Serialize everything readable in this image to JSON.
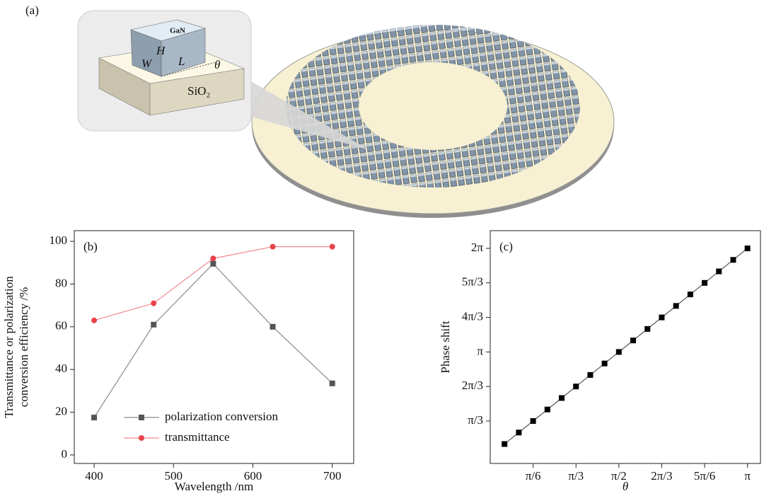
{
  "illustration": {
    "panel_label": "(a)",
    "block_label": "GaN",
    "height_label": "H",
    "width_label": "W",
    "length_label": "L",
    "angle_label": "θ",
    "substrate_label": "SiO₂"
  },
  "chart_data": [
    {
      "type": "line",
      "panel_label": "(b)",
      "xlabel": "Wavelength /nm",
      "ylabel": [
        "Transmittance or polarization",
        "conversion efficiency /%"
      ],
      "x": [
        400,
        475,
        550,
        625,
        700
      ],
      "series": [
        {
          "name": "polarization conversion",
          "color": "#555555",
          "marker": "square",
          "line_color": "#8a8a8a",
          "values": [
            17.5,
            61,
            89.5,
            60,
            33.5
          ]
        },
        {
          "name": "transmittance",
          "color": "#e8424a",
          "marker": "circle",
          "line_color": "#f08a8f",
          "values": [
            63,
            71,
            92,
            97.5,
            97.5
          ]
        }
      ],
      "xlim": [
        375,
        727
      ],
      "xticks": [
        400,
        500,
        600,
        700
      ],
      "ylim": [
        -4,
        105
      ],
      "yticks": [
        0,
        20,
        40,
        60,
        80,
        100
      ],
      "legend": "lower left"
    },
    {
      "type": "line",
      "panel_label": "(c)",
      "xlabel": "θ",
      "ylabel": [
        "Phase shift"
      ],
      "x": [
        0.1745,
        0.3491,
        0.5236,
        0.6981,
        0.8727,
        1.0472,
        1.2217,
        1.3963,
        1.5708,
        1.7453,
        1.9199,
        2.0944,
        2.2689,
        2.4435,
        2.618,
        2.7925,
        2.9671,
        3.1416
      ],
      "series": [
        {
          "color": "#000000",
          "marker": "square",
          "line_color": "#555555",
          "values": [
            0.3491,
            0.6981,
            1.0472,
            1.3963,
            1.7453,
            2.0944,
            2.4435,
            2.7925,
            3.1416,
            3.4907,
            3.8397,
            4.1888,
            4.5379,
            4.8869,
            5.236,
            5.5851,
            5.9341,
            6.2832
          ]
        }
      ],
      "xlim": [
        0,
        3.3
      ],
      "xticks": [
        {
          "value": 0.5236,
          "label": "π/6"
        },
        {
          "value": 1.0472,
          "label": "π/3"
        },
        {
          "value": 1.5708,
          "label": "π/2"
        },
        {
          "value": 2.0944,
          "label": "2π/3"
        },
        {
          "value": 2.618,
          "label": "5π/6"
        },
        {
          "value": 3.1416,
          "label": "π"
        }
      ],
      "ylim": [
        -0.24,
        6.82
      ],
      "yticks": [
        {
          "value": 1.0472,
          "label": "π/3"
        },
        {
          "value": 2.0944,
          "label": "2π/3"
        },
        {
          "value": 3.1416,
          "label": "π"
        },
        {
          "value": 4.1888,
          "label": "4π/3"
        },
        {
          "value": 5.236,
          "label": "5π/3"
        },
        {
          "value": 6.2832,
          "label": "2π"
        }
      ]
    }
  ]
}
